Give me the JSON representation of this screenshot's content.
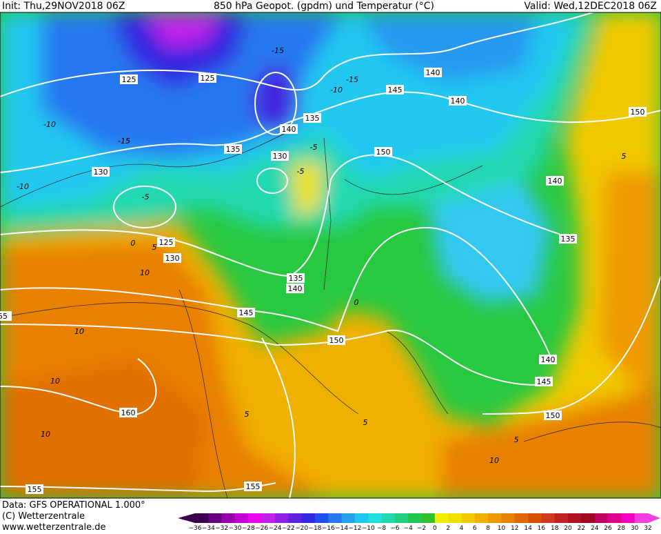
{
  "header": {
    "init": "Init: Thu,29NOV2018 06Z",
    "title": "850 hPa Geopot. (gpdm) und Temperatur (°C)",
    "valid": "Valid: Wed,12DEC2018 06Z"
  },
  "footer": {
    "data": "Data: GFS OPERATIONAL 1.000°",
    "copyright": "(C) Wetterzentrale",
    "url": "www.wetterzentrale.de"
  },
  "geopotential_labels": [
    "125",
    "125",
    "135",
    "140",
    "135",
    "130",
    "130",
    "125",
    "130",
    "135",
    "140",
    "145",
    "150",
    "160",
    "155",
    "155",
    "140",
    "145",
    "140",
    "150",
    "150",
    "140",
    "135",
    "140",
    "145",
    "150",
    "55"
  ],
  "isotherm_labels": [
    "-15",
    "-10",
    "-15",
    "-10",
    "-15",
    "-10",
    "-5",
    "0",
    "5",
    "10",
    "10",
    "10",
    "10",
    "5",
    "-5",
    "5",
    "5",
    "10",
    "5",
    "0",
    "-5"
  ],
  "colorbar": {
    "labels": [
      "−36",
      "−34",
      "−32",
      "−30",
      "−28",
      "−26",
      "−24",
      "−22",
      "−20",
      "−18",
      "−16",
      "−14",
      "−12",
      "−10",
      "−8",
      "−6",
      "−4",
      "−2",
      "0",
      "2",
      "4",
      "6",
      "8",
      "10",
      "12",
      "14",
      "16",
      "18",
      "20",
      "22",
      "24",
      "26",
      "28",
      "30",
      "32"
    ],
    "colors": [
      "#3c0050",
      "#6a0080",
      "#9a00b0",
      "#c800d8",
      "#f000f0",
      "#c020e8",
      "#9020e8",
      "#6020e0",
      "#3028e0",
      "#2050f0",
      "#2878f0",
      "#28a0f0",
      "#20c8f0",
      "#20e0e0",
      "#20d8b0",
      "#20d080",
      "#20c850",
      "#30c030",
      "#f0f000",
      "#f0e000",
      "#f0c800",
      "#f0b000",
      "#f09800",
      "#e88000",
      "#e06800",
      "#d85000",
      "#d03820",
      "#c02020",
      "#b01020",
      "#a00820",
      "#c00060",
      "#e00090",
      "#f000c0",
      "#f040e0"
    ]
  }
}
